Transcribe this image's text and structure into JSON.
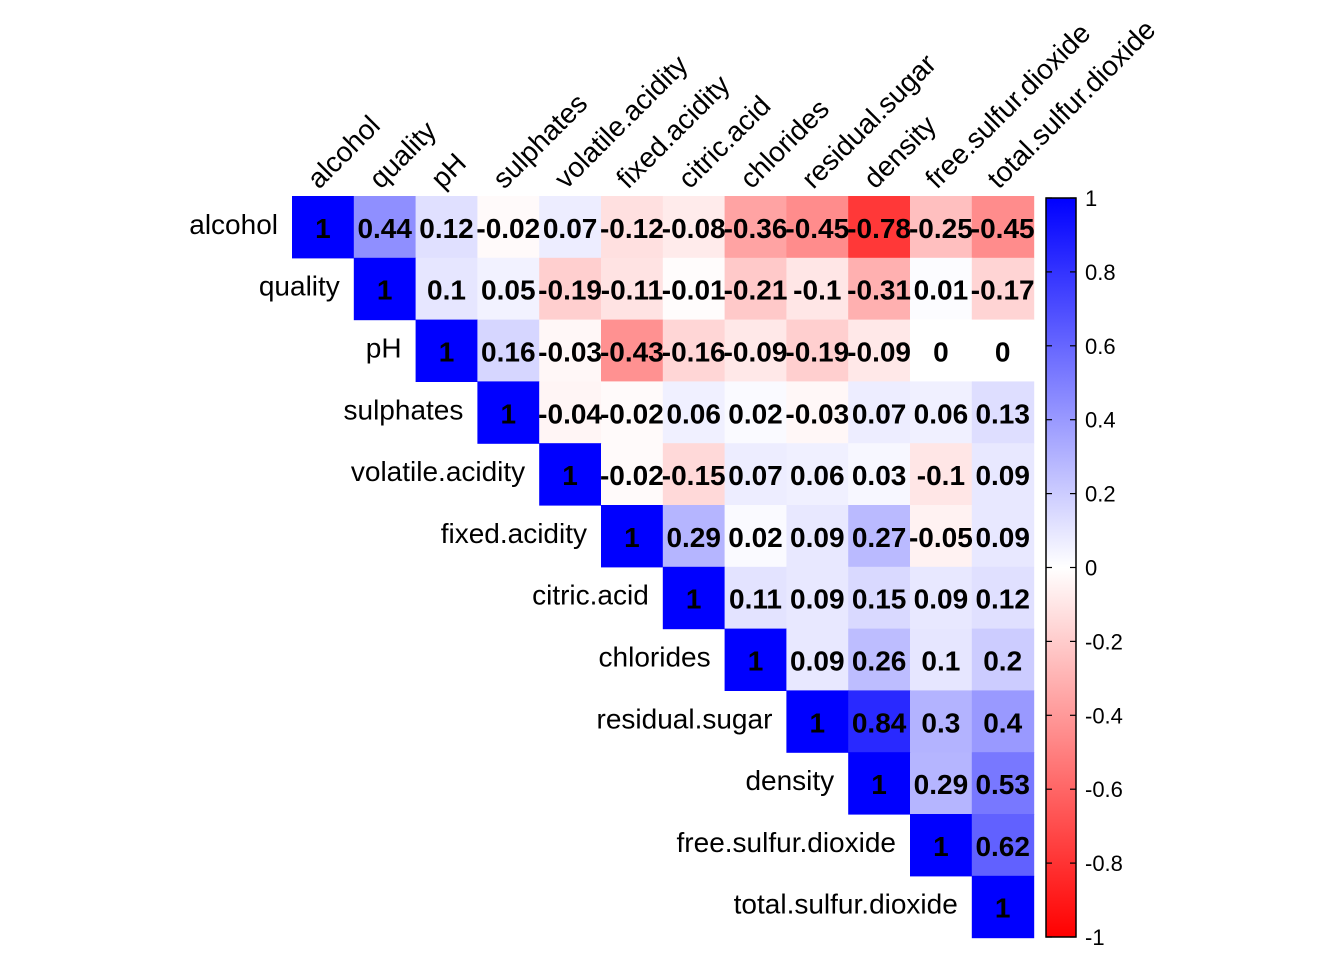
{
  "chart_data": {
    "type": "heatmap",
    "title": "",
    "variables": [
      "alcohol",
      "quality",
      "pH",
      "sulphates",
      "volatile.acidity",
      "fixed.acidity",
      "citric.acid",
      "chlorides",
      "residual.sugar",
      "density",
      "free.sulfur.dioxide",
      "total.sulfur.dioxide"
    ],
    "values": [
      [
        1,
        0.44,
        0.12,
        -0.02,
        0.07,
        -0.12,
        -0.08,
        -0.36,
        -0.45,
        -0.78,
        -0.25,
        -0.45
      ],
      [
        null,
        1,
        0.1,
        0.05,
        -0.19,
        -0.11,
        -0.01,
        -0.21,
        -0.1,
        -0.31,
        0.01,
        -0.17
      ],
      [
        null,
        null,
        1,
        0.16,
        -0.03,
        -0.43,
        -0.16,
        -0.09,
        -0.19,
        -0.09,
        0,
        0
      ],
      [
        null,
        null,
        null,
        1,
        -0.04,
        -0.02,
        0.06,
        0.02,
        -0.03,
        0.07,
        0.06,
        0.13
      ],
      [
        null,
        null,
        null,
        null,
        1,
        -0.02,
        -0.15,
        0.07,
        0.06,
        0.03,
        -0.1,
        0.09
      ],
      [
        null,
        null,
        null,
        null,
        null,
        1,
        0.29,
        0.02,
        0.09,
        0.27,
        -0.05,
        0.09
      ],
      [
        null,
        null,
        null,
        null,
        null,
        null,
        1,
        0.11,
        0.09,
        0.15,
        0.09,
        0.12
      ],
      [
        null,
        null,
        null,
        null,
        null,
        null,
        null,
        1,
        0.09,
        0.26,
        0.1,
        0.2
      ],
      [
        null,
        null,
        null,
        null,
        null,
        null,
        null,
        null,
        1,
        0.84,
        0.3,
        0.4
      ],
      [
        null,
        null,
        null,
        null,
        null,
        null,
        null,
        null,
        null,
        1,
        0.29,
        0.53
      ],
      [
        null,
        null,
        null,
        null,
        null,
        null,
        null,
        null,
        null,
        null,
        1,
        0.62
      ],
      [
        null,
        null,
        null,
        null,
        null,
        null,
        null,
        null,
        null,
        null,
        null,
        1
      ]
    ],
    "value_labels": [
      [
        "1",
        "0.44",
        "0.12",
        "-0.02",
        "0.07",
        "-0.12",
        "-0.08",
        "-0.36",
        "-0.45",
        "-0.78",
        "-0.25",
        "-0.45"
      ],
      [
        null,
        "1",
        "0.1",
        "0.05",
        "-0.19",
        "-0.11",
        "-0.01",
        "-0.21",
        "-0.1",
        "-0.31",
        "0.01",
        "-0.17"
      ],
      [
        null,
        null,
        "1",
        "0.16",
        "-0.03",
        "-0.43",
        "-0.16",
        "-0.09",
        "-0.19",
        "-0.09",
        "0",
        "0"
      ],
      [
        null,
        null,
        null,
        "1",
        "-0.04",
        "-0.02",
        "0.06",
        "0.02",
        "-0.03",
        "0.07",
        "0.06",
        "0.13"
      ],
      [
        null,
        null,
        null,
        null,
        "1",
        "-0.02",
        "-0.15",
        "0.07",
        "0.06",
        "0.03",
        "-0.1",
        "0.09"
      ],
      [
        null,
        null,
        null,
        null,
        null,
        "1",
        "0.29",
        "0.02",
        "0.09",
        "0.27",
        "-0.05",
        "0.09"
      ],
      [
        null,
        null,
        null,
        null,
        null,
        null,
        "1",
        "0.11",
        "0.09",
        "0.15",
        "0.09",
        "0.12"
      ],
      [
        null,
        null,
        null,
        null,
        null,
        null,
        null,
        "1",
        "0.09",
        "0.26",
        "0.1",
        "0.2"
      ],
      [
        null,
        null,
        null,
        null,
        null,
        null,
        null,
        null,
        "1",
        "0.84",
        "0.3",
        "0.4"
      ],
      [
        null,
        null,
        null,
        null,
        null,
        null,
        null,
        null,
        null,
        "1",
        "0.29",
        "0.53"
      ],
      [
        null,
        null,
        null,
        null,
        null,
        null,
        null,
        null,
        null,
        null,
        "1",
        "0.62"
      ],
      [
        null,
        null,
        null,
        null,
        null,
        null,
        null,
        null,
        null,
        null,
        null,
        "1"
      ]
    ],
    "colorbar": {
      "range": [
        -1,
        1
      ],
      "ticks": [
        "1",
        "0.8",
        "0.6",
        "0.4",
        "0.2",
        "0",
        "-0.2",
        "-0.4",
        "-0.6",
        "-0.8",
        "-1"
      ],
      "low_color": "#FF0000",
      "mid_color": "#FFFFFF",
      "high_color": "#0000FF"
    },
    "layout": "upper-triangle",
    "column_label_position": "top",
    "row_label_position": "left",
    "legend": "right"
  }
}
